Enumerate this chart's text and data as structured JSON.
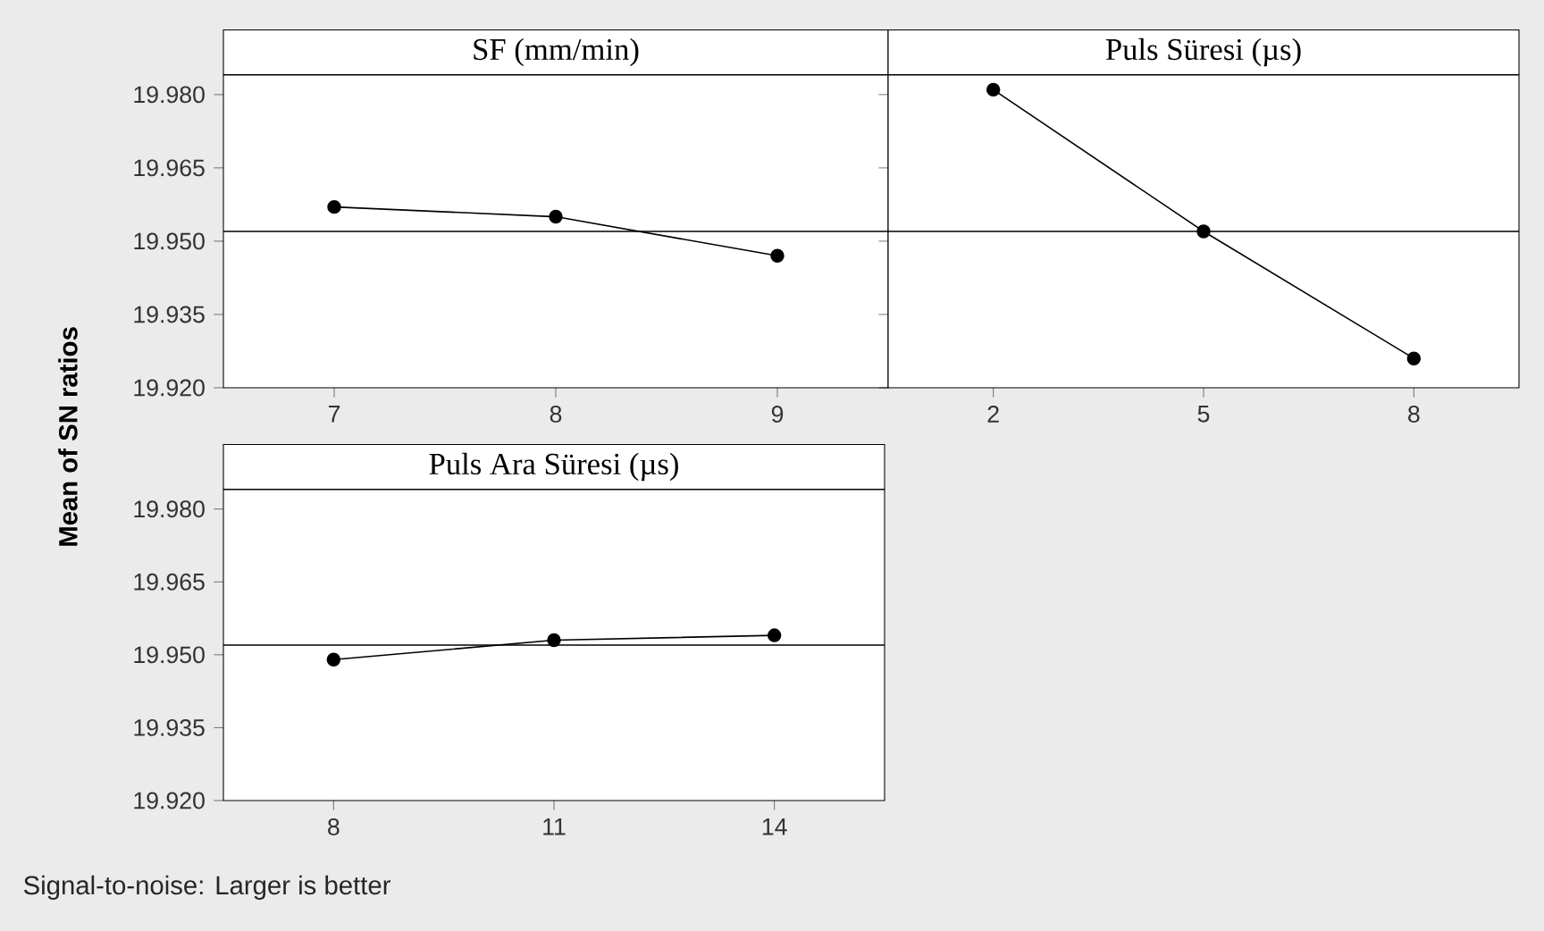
{
  "chart_data": [
    {
      "type": "line",
      "title": "SF (mm/min)",
      "ylabel": "Mean of SN ratios",
      "categories": [
        "7",
        "8",
        "9"
      ],
      "values": [
        19.957,
        19.955,
        19.947
      ],
      "color": "#000000",
      "marker": "circle",
      "line_style": "solid",
      "ylim": [
        19.92,
        19.984
      ],
      "yticks": [
        {
          "value": 19.92,
          "label": "19.920"
        },
        {
          "value": 19.935,
          "label": "19.935"
        },
        {
          "value": 19.95,
          "label": "19.950"
        },
        {
          "value": 19.965,
          "label": "19.965"
        },
        {
          "value": 19.98,
          "label": "19.980"
        }
      ],
      "ref_lines": [
        {
          "axis": "y",
          "value": 19.952,
          "color": "#000000"
        }
      ],
      "grid": false
    },
    {
      "type": "line",
      "title": "Puls Süresi (µs)",
      "categories": [
        "2",
        "5",
        "8"
      ],
      "values": [
        19.981,
        19.952,
        19.926
      ],
      "color": "#000000",
      "marker": "circle",
      "line_style": "solid",
      "ylim": [
        19.92,
        19.984
      ],
      "yticks": [
        {
          "value": 19.92,
          "label": null
        },
        {
          "value": 19.935,
          "label": null
        },
        {
          "value": 19.95,
          "label": null
        },
        {
          "value": 19.965,
          "label": null
        },
        {
          "value": 19.98,
          "label": null
        }
      ],
      "tick_labels": "x",
      "ref_lines": [
        {
          "axis": "y",
          "value": 19.952,
          "color": "#000000"
        }
      ],
      "grid": false
    },
    {
      "type": "line",
      "title": "Puls Ara Süresi (µs)",
      "categories": [
        "8",
        "11",
        "14"
      ],
      "values": [
        19.949,
        19.953,
        19.954
      ],
      "color": "#000000",
      "marker": "circle",
      "line_style": "solid",
      "ylim": [
        19.92,
        19.984
      ],
      "yticks": [
        {
          "value": 19.92,
          "label": "19.920"
        },
        {
          "value": 19.935,
          "label": "19.935"
        },
        {
          "value": 19.95,
          "label": "19.950"
        },
        {
          "value": 19.965,
          "label": "19.965"
        },
        {
          "value": 19.98,
          "label": "19.980"
        }
      ],
      "ref_lines": [
        {
          "axis": "y",
          "value": 19.952,
          "color": "#000000"
        }
      ],
      "annotations": [
        "Signal-to-noise: Larger is better"
      ],
      "grid": false
    }
  ]
}
